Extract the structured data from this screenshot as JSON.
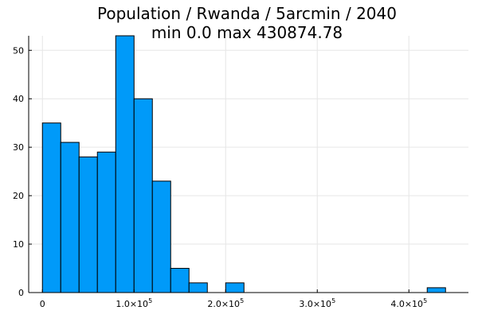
{
  "chart_data": {
    "type": "bar",
    "title": "Population / Rwanda / 5arcmin / 2040",
    "subtitle": "min 0.0  max 430874.78",
    "xlabel": "",
    "ylabel": "",
    "bin_width": 20000,
    "bins": [
      {
        "x0": 0,
        "x1": 20000,
        "count": 35
      },
      {
        "x0": 20000,
        "x1": 40000,
        "count": 31
      },
      {
        "x0": 40000,
        "x1": 60000,
        "count": 28
      },
      {
        "x0": 60000,
        "x1": 80000,
        "count": 29
      },
      {
        "x0": 80000,
        "x1": 100000,
        "count": 53
      },
      {
        "x0": 100000,
        "x1": 120000,
        "count": 40
      },
      {
        "x0": 120000,
        "x1": 140000,
        "count": 23
      },
      {
        "x0": 140000,
        "x1": 160000,
        "count": 5
      },
      {
        "x0": 160000,
        "x1": 180000,
        "count": 2
      },
      {
        "x0": 200000,
        "x1": 220000,
        "count": 2
      },
      {
        "x0": 420000,
        "x1": 440000,
        "count": 1
      }
    ],
    "xlim": [
      -15000,
      465000
    ],
    "ylim": [
      0,
      53
    ],
    "x_ticks": [
      {
        "value": 0,
        "label": "0",
        "exp": ""
      },
      {
        "value": 100000,
        "label": "1.0×10",
        "exp": "5"
      },
      {
        "value": 200000,
        "label": "2.0×10",
        "exp": "5"
      },
      {
        "value": 300000,
        "label": "3.0×10",
        "exp": "5"
      },
      {
        "value": 400000,
        "label": "4.0×10",
        "exp": "5"
      }
    ],
    "y_ticks": [
      {
        "value": 0,
        "label": "0"
      },
      {
        "value": 10,
        "label": "10"
      },
      {
        "value": 20,
        "label": "20"
      },
      {
        "value": 30,
        "label": "30"
      },
      {
        "value": 40,
        "label": "40"
      },
      {
        "value": 50,
        "label": "50"
      }
    ],
    "grid": true,
    "legend": "none",
    "bar_color": "#009af9"
  }
}
